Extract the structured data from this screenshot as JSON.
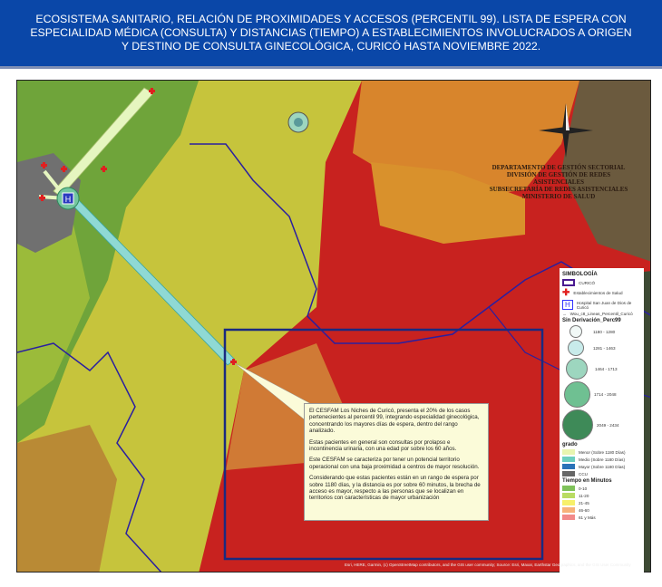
{
  "header": {
    "title_lines": [
      "ECOSISTEMA SANITARIO, RELACIÓN DE PROXIMIDADES Y ACCESOS (PERCENTIL 99). LISTA DE ESPERA CON",
      "ESPECIALIDAD MÉDICA  (CONSULTA) Y  DISTANCIAS (TIEMPO) A  ESTABLECIMIENTOS INVOLUCRADOS A ORIGEN",
      "Y DESTINO DE CONSULTA GINECOLÓGICA, CURICÓ HASTA NOVIEMBRE 2022."
    ]
  },
  "institution": {
    "lines": [
      "DEPARTAMENTO DE GESTIÓN SECTORIAL",
      "DIVISIÓN DE GESTIÓN DE REDES ASISTENCIALES",
      "SUBSECRETARÍA DE REDES ASISTENCIALES",
      "MINISTERIO DE SALUD"
    ]
  },
  "callout": {
    "paragraphs": [
      "El CESFAM Los Niches de Curicó, presenta el 20% de los casos pertenecientes al percentil 99, integrando especialidad ginecológica, concentrando los mayores días de espera, dentro del rango analizado.",
      "Estas pacientes en general son consultas por prolapso e incontinencia urinaria, con una edad por sobre los 60 años.",
      "Este CESFAM se caracteriza por tener un potencial territorio operacional con una baja proximidad a centros de mayor resolución.",
      "Considerando que estas pacientes están en un rango de espera por sobre 1180 días, y la distancia es por sobre 60 minutos, la brecha de acceso es mayor, respecto a las personas que se localizan en territorios con características de mayor urbanización"
    ]
  },
  "legend": {
    "title": "SIMBOLOGÍA",
    "items": [
      {
        "label": "CURICÓ",
        "icon": "boundary-icon"
      },
      {
        "label": "Establecimientos de Salud",
        "icon": "red-cross-icon"
      },
      {
        "label": "Hospital San Juan de Dios de Curicó",
        "icon": "hospital-icon"
      },
      {
        "label": "Wou_c8_Lineas_Percentil_Curicó",
        "icon": "line-icon"
      }
    ],
    "size_title": "Sin Derivación_Perc99",
    "size_classes": [
      {
        "label": "1180 - 1280",
        "color": "#f2f9f7"
      },
      {
        "label": "1281 - 1463",
        "color": "#c8ebea"
      },
      {
        "label": "1464 - 1713",
        "color": "#9dd6bf"
      },
      {
        "label": "1714 - 2048",
        "color": "#6fc092"
      },
      {
        "label": "2049 - 2434",
        "color": "#3e8a58"
      }
    ],
    "grade_title": "grado",
    "grades": [
      {
        "label": "Menor (Sobre 1180 Días)",
        "color": "#e8f5b0"
      },
      {
        "label": "Medio (Sobre 1180 Días)",
        "color": "#6ccfbf"
      },
      {
        "label": "Mayor (Sobre 1180 Días)",
        "color": "#2a72b8"
      },
      {
        "label": "CCU",
        "color": "#666666"
      }
    ],
    "time_title": "Tiempo en Minutos",
    "times": [
      {
        "label": "0-10",
        "color": "#7fc25a"
      },
      {
        "label": "11-20",
        "color": "#b9dc63"
      },
      {
        "label": "21-45",
        "color": "#f7f06a"
      },
      {
        "label": "46-60",
        "color": "#f7b27a"
      },
      {
        "label": "61 y Más",
        "color": "#f28a8a"
      }
    ]
  },
  "attribution": "Esri, HERE, Garmin, (c) OpenStreetMap contributors, and the GIS user community; Source: Esri, Maxar, Earthstar Geographics, and the GIS User Community",
  "colors": {
    "title_bg": "#0a47a8",
    "boundary": "#2a1fa0",
    "red_zone": "#c8221f",
    "orange_zone": "#d9822a",
    "yellow_zone": "#c8c83a",
    "green_zone": "#6ea33a"
  }
}
